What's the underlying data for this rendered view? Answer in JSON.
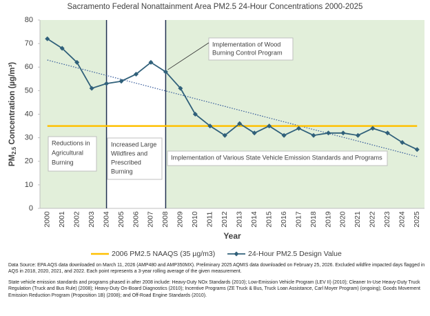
{
  "chart_data": {
    "type": "line",
    "title": "Sacramento Federal Nonattainment Area PM2.5 24-Hour Concentrations 2000-2025",
    "x_label": "Year",
    "y_label": [
      "PM",
      "2.5",
      " Concentration (µg/m³)"
    ],
    "categories": [
      "2000",
      "2001",
      "2002",
      "2003",
      "2004",
      "2005",
      "2006",
      "2007",
      "2008",
      "2009",
      "2010",
      "2011",
      "2012",
      "2013",
      "2014",
      "2015",
      "2016",
      "2017",
      "2018",
      "2019",
      "2020",
      "2021",
      "2022",
      "2023",
      "2024",
      "2025"
    ],
    "series": [
      {
        "name": "2006 PM2.5 NAAQS (35 µg/m3)",
        "color": "#ffc000",
        "marker": "none",
        "values": [
          35,
          35,
          35,
          35,
          35,
          35,
          35,
          35,
          35,
          35,
          35,
          35,
          35,
          35,
          35,
          35,
          35,
          35,
          35,
          35,
          35,
          35,
          35,
          35,
          35,
          35
        ]
      },
      {
        "name": "24-Hour PM2.5 Design Value",
        "color": "#30607a",
        "marker": "diamond",
        "values": [
          72,
          68,
          62,
          51,
          53,
          54,
          57,
          62,
          58,
          51,
          40,
          35,
          31,
          36,
          32,
          35,
          31,
          34,
          31,
          32,
          32,
          31,
          34,
          32,
          28,
          25
        ]
      }
    ],
    "trendline": {
      "start": 63,
      "end": 22,
      "color": "#2f5597"
    },
    "ylim": [
      0,
      80
    ],
    "yticks": [
      0,
      10,
      20,
      30,
      40,
      50,
      60,
      70,
      80
    ],
    "annotations": [
      {
        "lines": [
          "Reductions in",
          "Agricultural",
          "Burning"
        ]
      },
      {
        "lines": [
          "Increased Large",
          "Wildfires and",
          "Prescribed",
          "Burning"
        ]
      },
      {
        "lines": [
          "Implementation of  Various State Vehicle Emission Standards and Programs"
        ]
      },
      {
        "lines": [
          "Implementation of  Wood",
          "Burning Control Program"
        ]
      }
    ],
    "footnotes": [
      "Data Source: EPA AQS data downloaded on March 11, 2026 (AMP480 and AMP350MX). Preliminary 2025 AQMIS data downloaded on February 25, 2026. Excluded wildfire impacted days flagged in AQS in 2018, 2020, 2021, and 2022. Each point represents a 3-year rolling average of the given measurement.",
      "State vehicle emission standards and programs phased in after 2008 include: Heavy-Duty NOx Standards (2010); Low-Emission Vehicle Program (LEV II) (2010); Cleaner In-Use Heavy-Duty Truck Regulation (Truck and Bus Rule) (2008); Heavy-Duty On-Board Diagnostics (2010); Incentive Programs (ZE Truck & Bus, Truck Loan Assistance, Carl Moyer Program) (ongoing); Goods Movement Emission Reduction Program (Proposition 1B) (2008); and Off-Road Engine Standards (2010)."
    ]
  }
}
